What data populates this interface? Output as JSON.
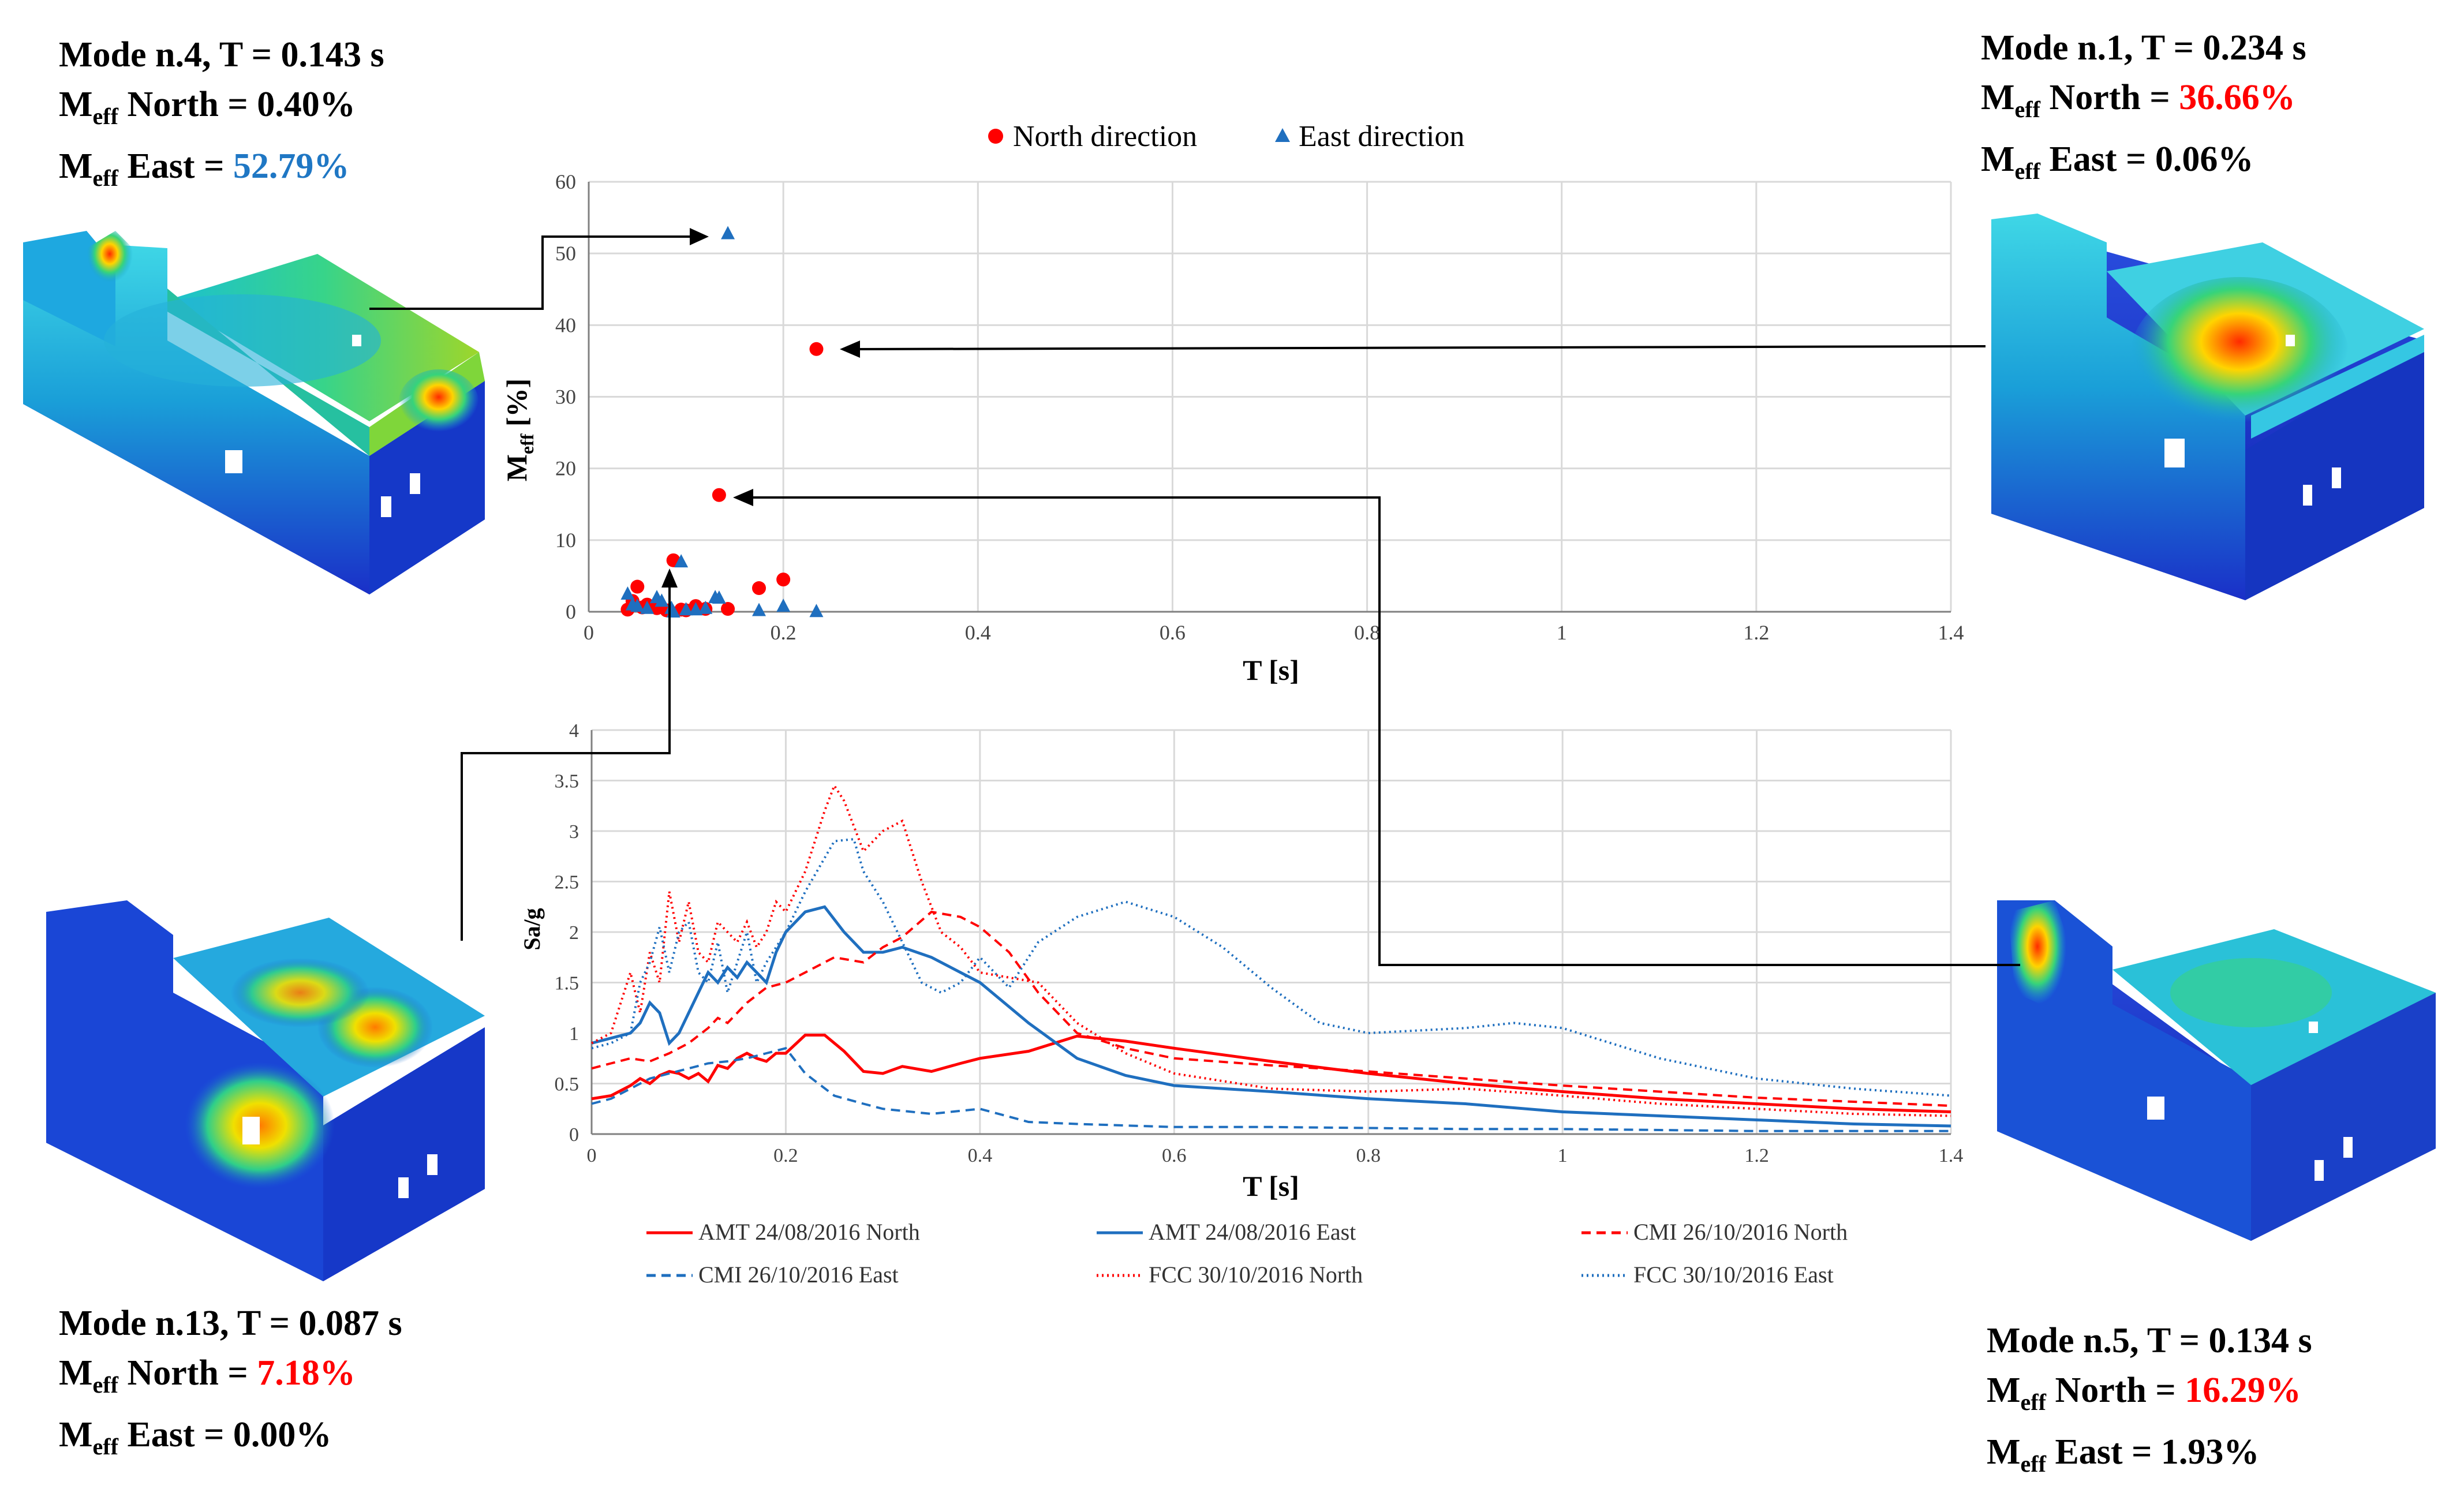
{
  "colors": {
    "north": "#ff0000",
    "east": "#1f6fbf",
    "grid": "#d9d9d9",
    "axis": "#808080"
  },
  "modes": [
    {
      "id": "mode4",
      "title": "Mode n.4, T = 0.143 s",
      "north_label": "M",
      "north_sub": "eff",
      "north_text": " North = ",
      "north_value": "0.40%",
      "east_label": "M",
      "east_sub": "eff",
      "east_text": " East = ",
      "east_value": "52.79%"
    },
    {
      "id": "mode1",
      "title": "Mode n.1, T = 0.234 s",
      "north_label": "M",
      "north_sub": "eff",
      "north_text": " North = ",
      "north_value": "36.66%",
      "east_label": "M",
      "east_sub": "eff",
      "east_text": " East = ",
      "east_value": "0.06%"
    },
    {
      "id": "mode13",
      "title": "Mode n.13, T = 0.087 s",
      "north_label": "M",
      "north_sub": "eff",
      "north_text": " North = ",
      "north_value": "7.18%",
      "east_label": "M",
      "east_sub": "eff",
      "east_text": " East = ",
      "east_value": "0.00%"
    },
    {
      "id": "mode5",
      "title": "Mode n.5, T = 0.134 s",
      "north_label": "M",
      "north_sub": "eff",
      "north_text": " North = ",
      "north_value": "16.29%",
      "east_label": "M",
      "east_sub": "eff",
      "east_text": " East = ",
      "east_value": "1.93%"
    }
  ],
  "chart_data": [
    {
      "type": "scatter",
      "title": "",
      "xlabel": "T [s]",
      "ylabel": "M",
      "ylabel_sub": "eff",
      "ylabel_unit": " [%]",
      "xlim": [
        0,
        1.4
      ],
      "ylim": [
        0,
        60
      ],
      "xticks": [
        "0",
        "0.2",
        "0.4",
        "0.6",
        "0.8",
        "1",
        "1.2",
        "1.4"
      ],
      "yticks": [
        "0",
        "10",
        "20",
        "30",
        "40",
        "50",
        "60"
      ],
      "legend": [
        "North direction",
        "East direction"
      ],
      "series": [
        {
          "name": "North direction",
          "marker": "circle",
          "x": [
            0.234,
            0.134,
            0.087,
            0.2,
            0.175,
            0.05,
            0.143,
            0.11,
            0.06,
            0.07,
            0.08,
            0.095,
            0.12,
            0.04,
            0.045,
            0.055,
            0.1
          ],
          "y": [
            36.66,
            16.29,
            7.18,
            4.5,
            3.3,
            3.5,
            0.4,
            0.8,
            1.0,
            0.5,
            0.2,
            0.3,
            0.4,
            0.3,
            1.5,
            0.6,
            0.2
          ]
        },
        {
          "name": "East direction",
          "marker": "triangle",
          "x": [
            0.143,
            0.134,
            0.095,
            0.2,
            0.13,
            0.04,
            0.045,
            0.06,
            0.07,
            0.085,
            0.087,
            0.11,
            0.12,
            0.175,
            0.234,
            0.05,
            0.075,
            0.1
          ],
          "y": [
            52.79,
            1.93,
            7.0,
            0.8,
            2.0,
            2.5,
            1.0,
            0.5,
            2.0,
            0.5,
            0.0,
            0.3,
            0.5,
            0.2,
            0.06,
            0.8,
            1.5,
            0.3
          ]
        }
      ]
    },
    {
      "type": "line",
      "title": "",
      "xlabel": "T [s]",
      "ylabel": "Sa/g",
      "xlim": [
        0,
        1.4
      ],
      "ylim": [
        0,
        4
      ],
      "xticks": [
        "0",
        "0.2",
        "0.4",
        "0.6",
        "0.8",
        "1",
        "1.2",
        "1.4"
      ],
      "yticks": [
        "0",
        "0.5",
        "1",
        "1.5",
        "2",
        "2.5",
        "3",
        "3.5",
        "4"
      ],
      "series": [
        {
          "name": "AMT 24/08/2016 North",
          "color": "#ff0000",
          "style": "solid",
          "x": [
            0,
            0.02,
            0.04,
            0.05,
            0.06,
            0.07,
            0.08,
            0.09,
            0.1,
            0.11,
            0.12,
            0.13,
            0.14,
            0.15,
            0.16,
            0.17,
            0.18,
            0.19,
            0.2,
            0.22,
            0.24,
            0.26,
            0.28,
            0.3,
            0.32,
            0.35,
            0.38,
            0.4,
            0.45,
            0.5,
            0.55,
            0.6,
            0.7,
            0.8,
            0.9,
            1.0,
            1.1,
            1.2,
            1.3,
            1.4
          ],
          "y": [
            0.35,
            0.38,
            0.48,
            0.55,
            0.5,
            0.58,
            0.62,
            0.6,
            0.55,
            0.6,
            0.52,
            0.68,
            0.65,
            0.75,
            0.8,
            0.75,
            0.72,
            0.8,
            0.8,
            0.98,
            0.98,
            0.82,
            0.62,
            0.6,
            0.67,
            0.62,
            0.7,
            0.75,
            0.82,
            0.97,
            0.92,
            0.85,
            0.72,
            0.6,
            0.5,
            0.42,
            0.35,
            0.3,
            0.25,
            0.22
          ]
        },
        {
          "name": "AMT 24/08/2016 East",
          "color": "#1f6fbf",
          "style": "solid",
          "x": [
            0,
            0.02,
            0.04,
            0.05,
            0.06,
            0.07,
            0.08,
            0.09,
            0.1,
            0.11,
            0.12,
            0.13,
            0.14,
            0.15,
            0.16,
            0.17,
            0.18,
            0.19,
            0.2,
            0.22,
            0.24,
            0.26,
            0.28,
            0.3,
            0.32,
            0.35,
            0.4,
            0.45,
            0.5,
            0.55,
            0.6,
            0.7,
            0.8,
            0.9,
            1.0,
            1.1,
            1.2,
            1.3,
            1.4
          ],
          "y": [
            0.9,
            0.95,
            1.0,
            1.1,
            1.3,
            1.2,
            0.9,
            1.0,
            1.2,
            1.4,
            1.6,
            1.5,
            1.65,
            1.55,
            1.7,
            1.6,
            1.5,
            1.8,
            2.0,
            2.2,
            2.25,
            2.0,
            1.8,
            1.8,
            1.85,
            1.75,
            1.5,
            1.1,
            0.75,
            0.58,
            0.48,
            0.42,
            0.35,
            0.3,
            0.22,
            0.18,
            0.14,
            0.1,
            0.08
          ]
        },
        {
          "name": "CMI 26/10/2016 North",
          "color": "#ff0000",
          "style": "dashed",
          "x": [
            0,
            0.02,
            0.04,
            0.06,
            0.08,
            0.1,
            0.12,
            0.13,
            0.14,
            0.15,
            0.16,
            0.18,
            0.2,
            0.22,
            0.25,
            0.28,
            0.3,
            0.32,
            0.35,
            0.38,
            0.4,
            0.43,
            0.46,
            0.5,
            0.55,
            0.6,
            0.7,
            0.8,
            0.9,
            1.0,
            1.1,
            1.2,
            1.3,
            1.4
          ],
          "y": [
            0.65,
            0.7,
            0.75,
            0.72,
            0.8,
            0.9,
            1.05,
            1.15,
            1.1,
            1.2,
            1.3,
            1.45,
            1.5,
            1.6,
            1.75,
            1.7,
            1.85,
            1.95,
            2.2,
            2.15,
            2.05,
            1.8,
            1.4,
            1.0,
            0.85,
            0.75,
            0.68,
            0.62,
            0.55,
            0.48,
            0.42,
            0.36,
            0.32,
            0.28
          ]
        },
        {
          "name": "CMI 26/10/2016 East",
          "color": "#1f6fbf",
          "style": "dashed",
          "x": [
            0,
            0.02,
            0.04,
            0.06,
            0.08,
            0.1,
            0.12,
            0.14,
            0.16,
            0.18,
            0.2,
            0.22,
            0.25,
            0.28,
            0.3,
            0.35,
            0.4,
            0.45,
            0.5,
            0.6,
            0.7,
            0.8,
            0.9,
            1.0,
            1.1,
            1.2,
            1.3,
            1.4
          ],
          "y": [
            0.3,
            0.35,
            0.45,
            0.55,
            0.6,
            0.65,
            0.7,
            0.72,
            0.75,
            0.8,
            0.85,
            0.6,
            0.38,
            0.3,
            0.25,
            0.2,
            0.25,
            0.12,
            0.1,
            0.07,
            0.07,
            0.06,
            0.05,
            0.05,
            0.04,
            0.03,
            0.03,
            0.03
          ]
        },
        {
          "name": "FCC 30/10/2016 North",
          "color": "#ff0000",
          "style": "dotted",
          "x": [
            0,
            0.02,
            0.03,
            0.04,
            0.05,
            0.06,
            0.07,
            0.08,
            0.09,
            0.1,
            0.11,
            0.12,
            0.13,
            0.14,
            0.15,
            0.16,
            0.17,
            0.18,
            0.19,
            0.2,
            0.22,
            0.24,
            0.25,
            0.26,
            0.28,
            0.3,
            0.32,
            0.34,
            0.36,
            0.38,
            0.4,
            0.43,
            0.46,
            0.5,
            0.55,
            0.6,
            0.7,
            0.8,
            0.9,
            1.0,
            1.1,
            1.2,
            1.3,
            1.4
          ],
          "y": [
            0.9,
            1.0,
            1.3,
            1.6,
            1.2,
            1.8,
            1.5,
            2.4,
            1.9,
            2.3,
            1.8,
            1.7,
            2.1,
            2.0,
            1.9,
            2.1,
            1.85,
            2.0,
            2.3,
            2.2,
            2.6,
            3.2,
            3.45,
            3.3,
            2.8,
            3.0,
            3.1,
            2.5,
            2.0,
            1.85,
            1.6,
            1.55,
            1.5,
            1.1,
            0.8,
            0.6,
            0.45,
            0.42,
            0.45,
            0.38,
            0.3,
            0.25,
            0.2,
            0.18
          ]
        },
        {
          "name": "FCC 30/10/2016 East",
          "color": "#1f6fbf",
          "style": "dotted",
          "x": [
            0,
            0.02,
            0.04,
            0.05,
            0.06,
            0.07,
            0.08,
            0.09,
            0.1,
            0.11,
            0.12,
            0.13,
            0.14,
            0.15,
            0.16,
            0.17,
            0.18,
            0.2,
            0.22,
            0.25,
            0.27,
            0.28,
            0.3,
            0.32,
            0.34,
            0.36,
            0.38,
            0.4,
            0.43,
            0.46,
            0.5,
            0.55,
            0.6,
            0.65,
            0.7,
            0.75,
            0.8,
            0.9,
            0.95,
            1.0,
            1.1,
            1.2,
            1.3,
            1.4
          ],
          "y": [
            0.85,
            0.9,
            1.0,
            1.5,
            1.7,
            2.05,
            1.6,
            2.0,
            2.1,
            1.6,
            1.5,
            1.9,
            1.4,
            1.7,
            2.0,
            1.5,
            1.7,
            2.0,
            2.4,
            2.9,
            2.92,
            2.6,
            2.3,
            1.9,
            1.5,
            1.4,
            1.5,
            1.75,
            1.45,
            1.9,
            2.15,
            2.3,
            2.15,
            1.85,
            1.45,
            1.1,
            1.0,
            1.05,
            1.1,
            1.05,
            0.75,
            0.55,
            0.45,
            0.38
          ]
        }
      ]
    }
  ]
}
